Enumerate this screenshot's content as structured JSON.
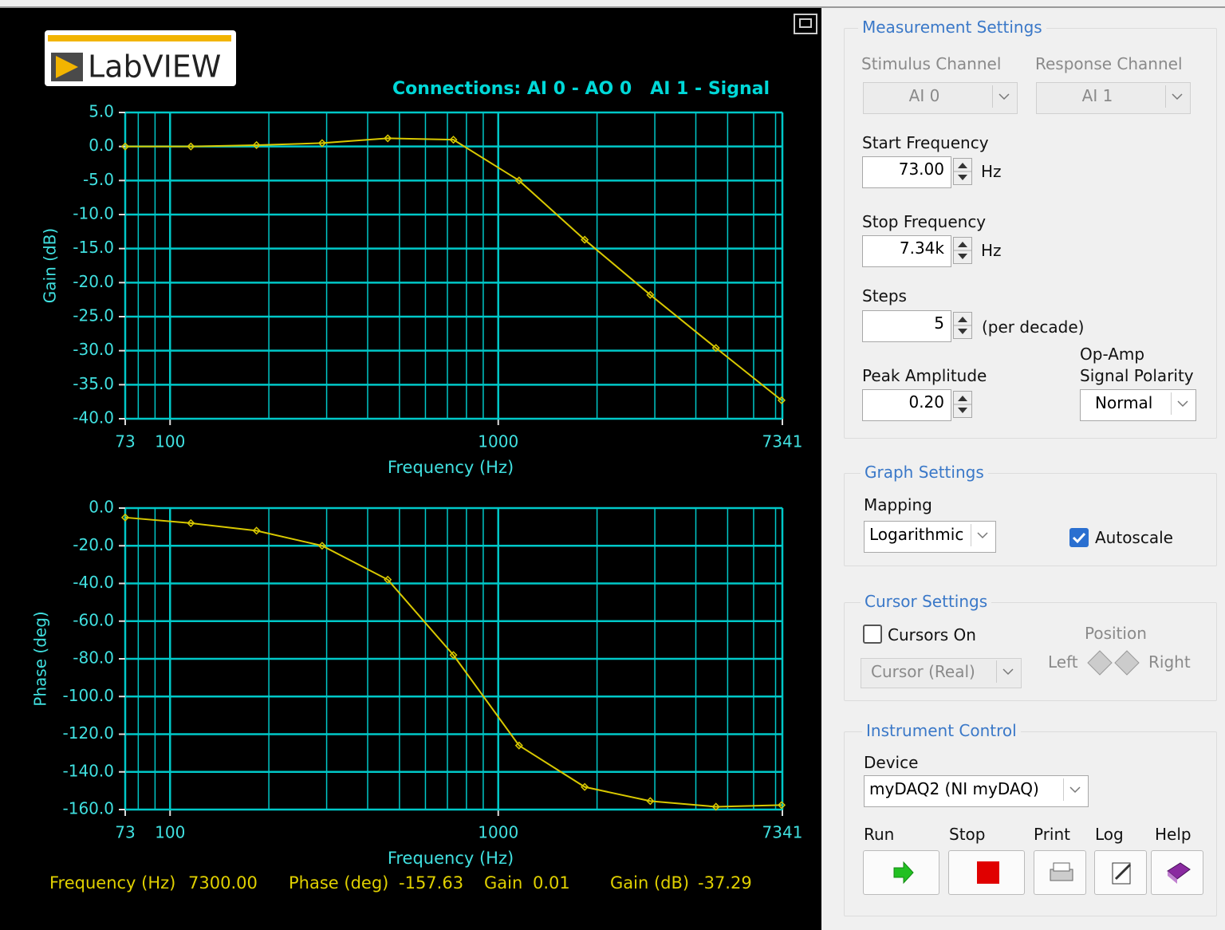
{
  "header": {
    "logo": "LabVIEW",
    "connections": "Connections: AI 0 - AO 0   AI 1 - Signal"
  },
  "chart_data": [
    {
      "type": "line",
      "y_label": "Gain (dB)",
      "x_label": "Frequency (Hz)",
      "x_scale": "log",
      "grid": true,
      "color": "#d8c800",
      "x": [
        73,
        115.7,
        183.4,
        290.6,
        460.6,
        730,
        1157,
        1834,
        2906,
        4606,
        7300
      ],
      "values": [
        0.0,
        0.0,
        0.2,
        0.5,
        1.2,
        1.0,
        -5.0,
        -13.7,
        -21.8,
        -29.6,
        -37.29
      ],
      "xlim": [
        73,
        7341
      ],
      "xticks": [
        73,
        100,
        1000,
        7341
      ],
      "ylim": [
        -40,
        5
      ],
      "yticks": [
        {
          "value": -40,
          "label": "-40.0"
        },
        {
          "value": -35,
          "label": "-35.0"
        },
        {
          "value": -30,
          "label": "-30.0"
        },
        {
          "value": -25,
          "label": "-25.0"
        },
        {
          "value": -20,
          "label": "-20.0"
        },
        {
          "value": -15,
          "label": "-15.0"
        },
        {
          "value": -10,
          "label": "-10.0"
        },
        {
          "value": -5,
          "label": "-5.0"
        },
        {
          "value": 0,
          "label": "0.0"
        },
        {
          "value": 5,
          "label": "5.0"
        }
      ]
    },
    {
      "type": "line",
      "y_label": "Phase (deg)",
      "x_label": "Frequency (Hz)",
      "x_scale": "log",
      "grid": true,
      "color": "#d8c800",
      "x": [
        73,
        115.7,
        183.4,
        290.6,
        460.6,
        730,
        1157,
        1834,
        2906,
        4606,
        7300
      ],
      "values": [
        -5,
        -8,
        -12,
        -20,
        -38,
        -78,
        -126,
        -148,
        -155.5,
        -158.5,
        -157.63
      ],
      "xlim": [
        73,
        7341
      ],
      "xticks": [
        73,
        100,
        1000,
        7341
      ],
      "ylim": [
        -160,
        0
      ],
      "yticks": [
        {
          "value": -160,
          "label": "-160.0"
        },
        {
          "value": -140,
          "label": "-140.0"
        },
        {
          "value": -120,
          "label": "-120.0"
        },
        {
          "value": -100,
          "label": "-100.0"
        },
        {
          "value": -80,
          "label": "-80.0"
        },
        {
          "value": -60,
          "label": "-60.0"
        },
        {
          "value": -40,
          "label": "-40.0"
        },
        {
          "value": -20,
          "label": "-20.0"
        },
        {
          "value": 0,
          "label": "0.0"
        }
      ]
    }
  ],
  "readout": {
    "freq_label": "Frequency (Hz)",
    "freq_value": "7300.00",
    "phase_label": "Phase (deg)",
    "phase_value": "-157.63",
    "gain_label": "Gain",
    "gain_value": "0.01",
    "gaindb_label": "Gain (dB)",
    "gaindb_value": "-37.29"
  },
  "measurement": {
    "title": "Measurement Settings",
    "stimulus_label": "Stimulus Channel",
    "stimulus_value": "AI 0",
    "response_label": "Response Channel",
    "response_value": "AI 1",
    "start_label": "Start Frequency",
    "start_value": "73.00",
    "start_unit": "Hz",
    "stop_label": "Stop Frequency",
    "stop_value": "7.34k",
    "stop_unit": "Hz",
    "steps_label": "Steps",
    "steps_value": "5",
    "steps_unit": "(per decade)",
    "amp_label": "Peak Amplitude",
    "amp_value": "0.20",
    "polarity_label_1": "Op-Amp",
    "polarity_label_2": "Signal Polarity",
    "polarity_value": "Normal"
  },
  "graph_settings": {
    "title": "Graph Settings",
    "mapping_label": "Mapping",
    "mapping_value": "Logarithmic",
    "autoscale": "Autoscale"
  },
  "cursor_settings": {
    "title": "Cursor Settings",
    "cursors_on": "Cursors On",
    "position": "Position",
    "left": "Left",
    "right": "Right",
    "cursor_value": "Cursor (Real)"
  },
  "instrument": {
    "title": "Instrument Control",
    "device_label": "Device",
    "device_value": "myDAQ2 (NI myDAQ)",
    "buttons": [
      "Run",
      "Stop",
      "Print",
      "Log",
      "Help"
    ]
  }
}
